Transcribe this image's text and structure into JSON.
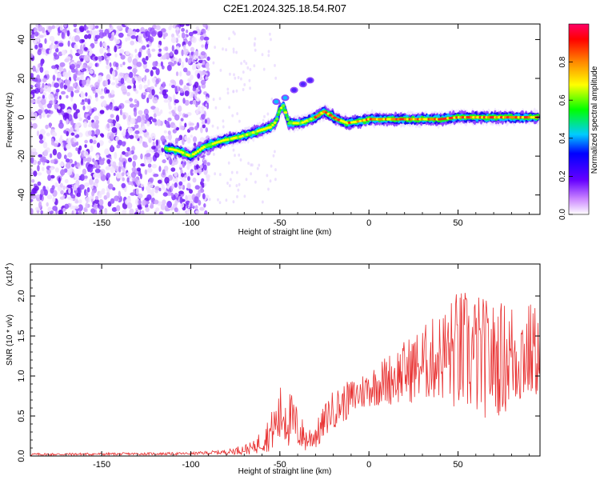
{
  "figure": {
    "title": "C2E1.2024.325.18.54.R07"
  },
  "chart_data": [
    {
      "type": "heatmap",
      "xlabel": "Height of straight line (km)",
      "ylabel": "Frequency (Hz)",
      "xlim": [
        -190,
        96
      ],
      "ylim": [
        -50,
        48
      ],
      "xticks": [
        -150,
        -100,
        -50,
        0,
        50
      ],
      "yticks": [
        -40,
        -20,
        0,
        20,
        40
      ],
      "colorbar": {
        "label": "Normalized spectral amplitude",
        "range": [
          0,
          1
        ],
        "ticks": [
          "0.0",
          "0.2",
          "0.4",
          "0.6",
          "0.8"
        ]
      },
      "noise_region_x": [
        -190,
        -90
      ],
      "ridge": [
        {
          "x": -114,
          "f": -16
        },
        {
          "x": -108,
          "f": -17
        },
        {
          "x": -100,
          "f": -20
        },
        {
          "x": -92,
          "f": -15
        },
        {
          "x": -82,
          "f": -12
        },
        {
          "x": -72,
          "f": -10
        },
        {
          "x": -62,
          "f": -7
        },
        {
          "x": -55,
          "f": -5
        },
        {
          "x": -52,
          "f": -2
        },
        {
          "x": -50,
          "f": 4
        },
        {
          "x": -48,
          "f": 6
        },
        {
          "x": -45,
          "f": -3
        },
        {
          "x": -38,
          "f": -3
        },
        {
          "x": -30,
          "f": 0
        },
        {
          "x": -25,
          "f": 3
        },
        {
          "x": -18,
          "f": -1
        },
        {
          "x": -12,
          "f": -3
        },
        {
          "x": -5,
          "f": -2
        },
        {
          "x": 0,
          "f": -1
        },
        {
          "x": 10,
          "f": -1
        },
        {
          "x": 20,
          "f": -1
        },
        {
          "x": 30,
          "f": -1
        },
        {
          "x": 40,
          "f": -1
        },
        {
          "x": 50,
          "f": 0
        },
        {
          "x": 60,
          "f": 0
        },
        {
          "x": 70,
          "f": 0
        },
        {
          "x": 80,
          "f": 0
        },
        {
          "x": 90,
          "f": 0
        }
      ],
      "branch": [
        {
          "x": -52,
          "f": 8
        },
        {
          "x": -47,
          "f": 10
        },
        {
          "x": -42,
          "f": 14
        },
        {
          "x": -37,
          "f": 17
        },
        {
          "x": -33,
          "f": 19
        }
      ]
    },
    {
      "type": "line",
      "xlabel": "Height of straight line (km)",
      "ylabel": "SNR (10 * v/v)",
      "ylabel_multiplier": "(x10",
      "ylabel_multiplier_exp": "4",
      "xlim": [
        -190,
        96
      ],
      "ylim": [
        0,
        2.4
      ],
      "xticks": [
        -150,
        -100,
        -50,
        0,
        50
      ],
      "yticks": [
        "0.0",
        "0.5",
        "1.0",
        "1.5",
        "2.0"
      ],
      "color": "#e83030",
      "envelope": [
        {
          "x": -190,
          "mean": 0.02,
          "spread": 0.01
        },
        {
          "x": -100,
          "mean": 0.03,
          "spread": 0.01
        },
        {
          "x": -80,
          "mean": 0.05,
          "spread": 0.02
        },
        {
          "x": -65,
          "mean": 0.1,
          "spread": 0.05
        },
        {
          "x": -55,
          "mean": 0.3,
          "spread": 0.15
        },
        {
          "x": -48,
          "mean": 0.55,
          "spread": 0.28
        },
        {
          "x": -42,
          "mean": 0.4,
          "spread": 0.2
        },
        {
          "x": -35,
          "mean": 0.2,
          "spread": 0.1
        },
        {
          "x": -28,
          "mean": 0.3,
          "spread": 0.12
        },
        {
          "x": -22,
          "mean": 0.55,
          "spread": 0.15
        },
        {
          "x": -10,
          "mean": 0.72,
          "spread": 0.15
        },
        {
          "x": 0,
          "mean": 0.85,
          "spread": 0.15
        },
        {
          "x": 10,
          "mean": 0.95,
          "spread": 0.2
        },
        {
          "x": 20,
          "mean": 1.05,
          "spread": 0.25
        },
        {
          "x": 30,
          "mean": 1.15,
          "spread": 0.3
        },
        {
          "x": 40,
          "mean": 1.25,
          "spread": 0.35
        },
        {
          "x": 50,
          "mean": 1.3,
          "spread": 0.5
        },
        {
          "x": 60,
          "mean": 1.25,
          "spread": 0.5
        },
        {
          "x": 70,
          "mean": 1.2,
          "spread": 0.45
        },
        {
          "x": 80,
          "mean": 1.25,
          "spread": 0.45
        },
        {
          "x": 90,
          "mean": 1.3,
          "spread": 0.4
        },
        {
          "x": 96,
          "mean": 1.3,
          "spread": 0.35
        }
      ]
    }
  ]
}
